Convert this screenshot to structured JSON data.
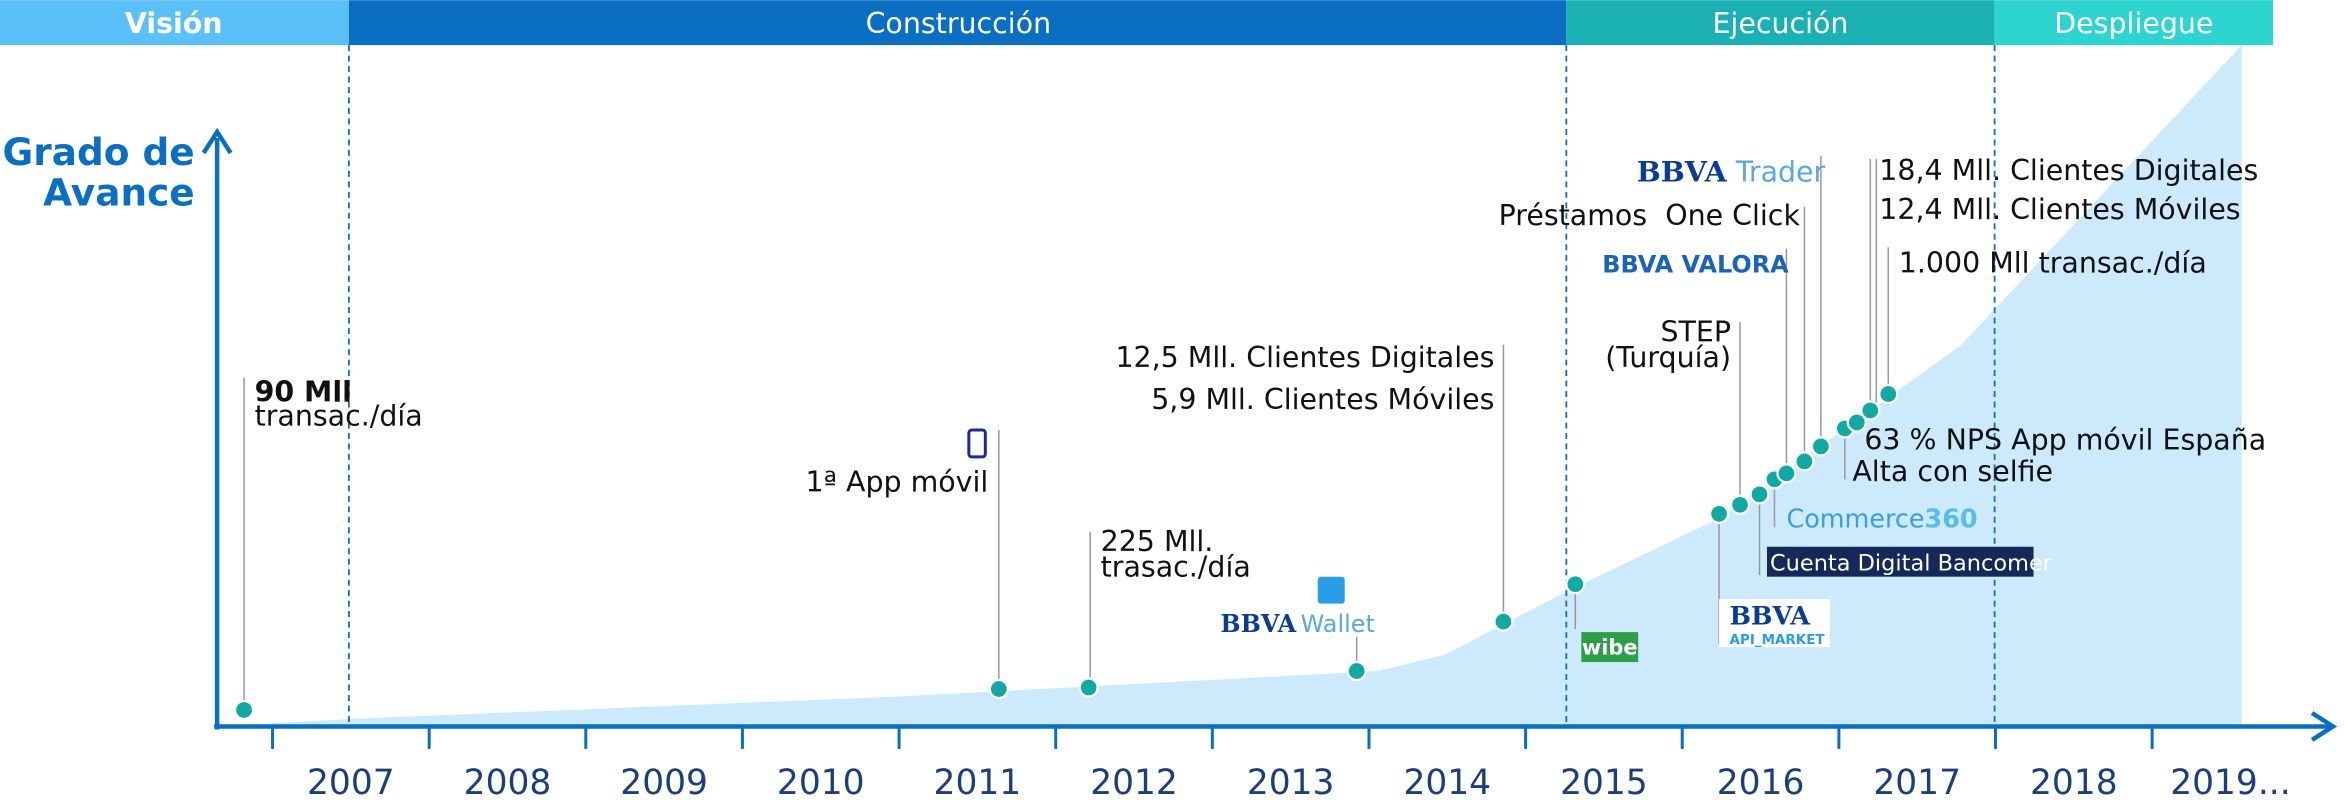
{
  "phases": [
    "Visión",
    "Construcción",
    "Ejecución",
    "Despliegue"
  ],
  "axis_label": [
    "Grado de",
    "Avance"
  ],
  "years": [
    "2007",
    "2008",
    "2009",
    "2010",
    "2011",
    "2012",
    "2013",
    "2014",
    "2015",
    "2016",
    "2017",
    "2018",
    "2019..."
  ],
  "events": {
    "e2006": [
      "90 Mll",
      "transac./día"
    ],
    "e2011": [
      "1ª App móvil"
    ],
    "e2012": [
      "225 Mll.",
      "trasac./día"
    ],
    "e2014": [
      "12,5 Mll. Clientes Digitales",
      "5,9 Mll. Clientes Móviles"
    ],
    "step": [
      "STEP",
      "(Turquía)"
    ],
    "prestamos": [
      "Préstamos  One Click"
    ],
    "e2017a": [
      "18,4 Mll. Clientes Digitales",
      "12,4 Mll. Clientes Móviles"
    ],
    "e2017b": [
      "1.000 Mll transac./día"
    ],
    "e2017c": [
      "63 % NPS App móvil España",
      "Alta con selfie"
    ]
  },
  "logos": {
    "trader": [
      "BBVA",
      "Trader"
    ],
    "valora": "BBVA VALORA",
    "wallet": [
      "BBVA",
      "Wallet"
    ],
    "wibe": "wibe",
    "commerce": [
      "Commerce",
      "360"
    ],
    "bancomer": "Cuenta Digital Bancomer",
    "api": [
      "BBVA",
      "API_MARKET"
    ]
  }
}
